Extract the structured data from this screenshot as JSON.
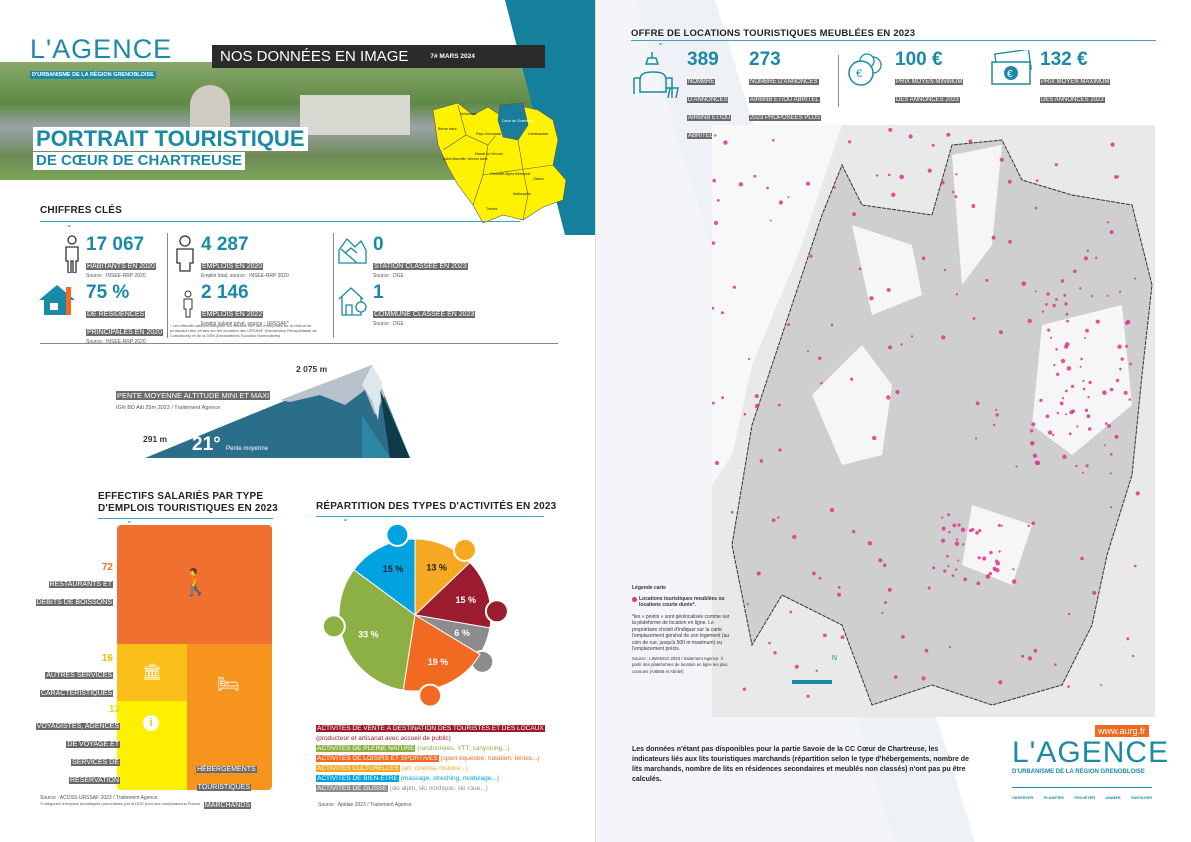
{
  "header": {
    "logo_main": "L'AGENCE",
    "logo_sub": "D'URBANISME DE LA RÉGION GRENOBLOISE",
    "banner": "NOS DONNÉES EN IMAGE",
    "issue": "7# MARS 2024",
    "title_line1": "PORTRAIT TOURISTIQUE",
    "title_line2": "DE CŒUR DE CHARTREUSE"
  },
  "locator_map": {
    "labels": [
      "Bièvre Isère",
      "Voironnais",
      "Pays Voironnais",
      "Cœur de Chartreuse",
      "Grésivaudan",
      "Saint-Marcellin Vercors Isère",
      "Massif du Vercors",
      "Grenoble Alpes Métropole",
      "Oisans",
      "Matheysine",
      "Trièves"
    ]
  },
  "key_figures": {
    "title": "CHIFFRES CLÉS",
    "items": [
      {
        "value": "17 067",
        "label": "HABITANTS EN 2020",
        "source": "Source : INSEE-RRP 2020",
        "icon": "person-icon"
      },
      {
        "value": "75 %",
        "label": "DE RÉSIDENCES PRINCIPALES EN 2020",
        "source": "Source : INSEE-RRP 2020",
        "icon": "house-icon"
      },
      {
        "value": "4 287",
        "label": "EMPLOIS EN 2020",
        "source": "Emploi total, source : INSEE-RRP 2020",
        "icon": "worker-icon"
      },
      {
        "value": "2 146",
        "label": "EMPLOIS EN 2022",
        "source": "Emploi salarié privé, source : URSSAF*",
        "icon": "employee-icon"
      },
      {
        "value": "0",
        "label": "STATION CLASSÉE EN 2023",
        "source": "Source : DGE",
        "icon": "ski-station-icon"
      },
      {
        "value": "1",
        "label": "COMMUNE CLASSÉE EN 2023",
        "source": "Source : DGE",
        "icon": "town-icon"
      }
    ],
    "footnote": "* Les effectifs salariés intègrent les effectifs être des entreprises de la chaîne de production des ventes sur les données des URSSAF (Déclaration Récapitulatifs de Cotisations) et de la DSN (Déclarations Sociales Nominatives)"
  },
  "altitude": {
    "label": "PENTE MOYENNE ALTITUDE MINI ET MAXI",
    "source": "IGN BD Alti 25m 2023 / Traitement Agence",
    "max": "2 075 m",
    "min": "291 m",
    "slope": "21°",
    "slope_label": "Pente moyenne"
  },
  "employment": {
    "title_line1": "EFFECTIFS SALARIÉS PAR TYPE",
    "title_line2": "D'EMPLOIS TOURISTIQUES EN 2023",
    "items": [
      {
        "value": "72",
        "label": "RESTAURANTS ET DÉBITS DE BOISSONS",
        "color": "#f07030"
      },
      {
        "value": "16",
        "label": "AUTRES SERVICES CARACTÉRISTIQUES",
        "color": "#fbbf1a"
      },
      {
        "value": "13",
        "label": "VOYAGISTES, AGENCES DE VOYAGE ET SERVICES DE RÉSERVATION",
        "color": "#fff000"
      },
      {
        "value": "35",
        "label": "HÉBERGEMENTS TOURISTIQUES MARCHANDS",
        "color": "#f7941d"
      }
    ],
    "source": "Source : ACOSS-URSSAF 2023 / Traitement Agence",
    "footnote": "*Catégories d'emplois touristiques préconisées par la DGE pour des comparaisons France"
  },
  "activities": {
    "title": "RÉPARTITION DES TYPES D'ACTIVITÉS EN 2023",
    "source": "Source : Apidae 2023 / Traitement Agence",
    "legend": [
      {
        "label": "ACTIVITÉS DE VENTE À DESTINATION DES TOURISTES ET DES LOCAUX",
        "detail": "(producteur et artisanat avec accueil de public)",
        "color": "#9b1c2e"
      },
      {
        "label": "ACTIVITÉS DE PLEINE NATURE",
        "detail": "(randonnées, VTT, canyoning...)",
        "color": "#8cb043"
      },
      {
        "label": "ACTIVITÉS DE LOISIRS ET SPORTIVES",
        "detail": "(sport équestre, natation, tennis...)",
        "color": "#f26a21"
      },
      {
        "label": "ACTIVITÉS CULTURELLES",
        "detail": "(art, cinéma, histoire...)",
        "color": "#f7a823"
      },
      {
        "label": "ACTIVITÉS DE BIEN-ÊTRE",
        "detail": "(massage, streching, modelage...)",
        "color": "#00a3e0"
      },
      {
        "label": "ACTIVITÉS DE GLISSE",
        "detail": "(ski alpin, ski nordique, ski roue...)",
        "color": "#8c8c8c"
      }
    ]
  },
  "chart_data": {
    "type": "pie",
    "title": "RÉPARTITION DES TYPES D'ACTIVITÉS EN 2023",
    "slices": [
      {
        "name": "Culturelles",
        "value": 13,
        "label": "13 %",
        "color": "#f7a823"
      },
      {
        "name": "Vente",
        "value": 15,
        "label": "15 %",
        "color": "#9b1c2e"
      },
      {
        "name": "Glisse",
        "value": 6,
        "label": "6 %",
        "color": "#8c8c8c"
      },
      {
        "name": "Loisirs et sportives",
        "value": 19,
        "label": "19 %",
        "color": "#f26a21"
      },
      {
        "name": "Pleine nature",
        "value": 33,
        "label": "33 %",
        "color": "#8cb043"
      },
      {
        "name": "Bien-être",
        "value": 15,
        "label": "15 %",
        "color": "#00a3e0"
      }
    ]
  },
  "rentals": {
    "title": "OFFRE DE LOCATIONS TOURISTIQUES MEUBLÉES EN 2023",
    "items": [
      {
        "value": "389",
        "label": "NOMBRE D'ANNONCES AIRBNB ET/OU ABRITEL 2023"
      },
      {
        "value": "273",
        "label": "NOMBRE D'ANNONCES AIRBNB ET/OU ABRITEL 2023 PROPOSÉES PLUS DE 120 JOURS/AN"
      },
      {
        "value": "100 €",
        "label": "PRIX MOYEN MINIMUM DES ANNONCES 2023"
      },
      {
        "value": "132 €",
        "label": "PRIX MOYEN MAXIMUM DES ANNONCES 2023"
      }
    ]
  },
  "map_legend": {
    "title": "Légende carte",
    "item": "Locations touristiques meublées ou locations courte durée*.",
    "note": "*les « points » sont géolocalisés comme sur la plateforme de location en ligne. Le propriétaire choisit d'indiquer sur la carte l'emplacement général de son logement (au coin de rue, jusqu'à 500 m maximum) ou l'emplacement précis.",
    "source": "Source : LIWANGO 2023 / traitement Agence. À partir des plateformes de location en ligne les plus connues (AirBnB et Abritel)",
    "dot_color": "#e0338f"
  },
  "footer": {
    "note": "Les données n'étant pas disponibles pour la partie Savoie de la CC Cœur de Chartreuse, les indicateurs liés aux lits touristiques marchands (répartition selon le type d'hébergements, nombre de lits marchands, nombre de lits en résidences secondaires et meublés non classés) n'ont pas pu être calculés.",
    "url": "www.aurg.fr",
    "logo_main": "L'AGENCE",
    "logo_sub": "D'URBANISME DE LA RÉGION GRENOBLOISE",
    "motto": [
      "OBSERVER",
      "PLANIFIER",
      "PROJETER",
      "ANIMER",
      "PARTAGER"
    ]
  }
}
